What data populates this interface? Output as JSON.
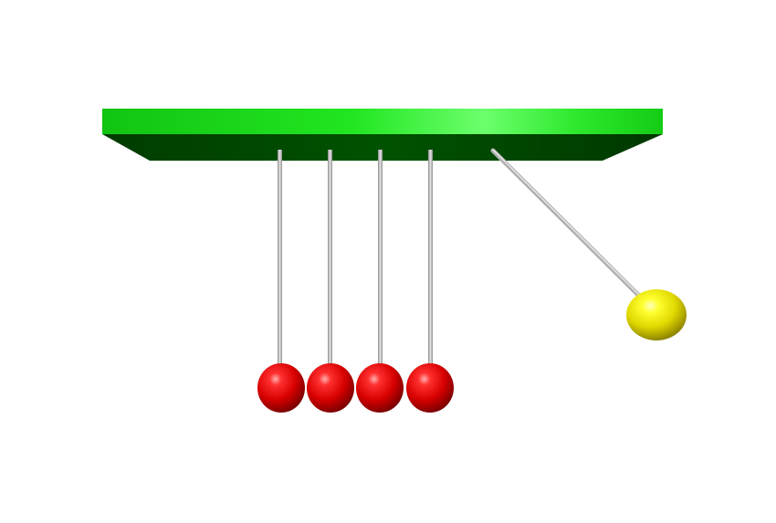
{
  "scene": {
    "subject": "newtons-cradle",
    "colors": {
      "background": "#ffffff",
      "bar_top": "#1ee01e",
      "bar_top_highlight": "#6cff6c",
      "bar_side": "#004d00",
      "string": "#bdbdbd",
      "ball_resting": "#e00000",
      "ball_swinging": "#e8e000"
    },
    "balls": [
      {
        "id": "ball-1",
        "state": "resting",
        "color": "red"
      },
      {
        "id": "ball-2",
        "state": "resting",
        "color": "red"
      },
      {
        "id": "ball-3",
        "state": "resting",
        "color": "red"
      },
      {
        "id": "ball-4",
        "state": "resting",
        "color": "red"
      },
      {
        "id": "ball-5",
        "state": "swinging",
        "color": "yellow"
      }
    ]
  }
}
